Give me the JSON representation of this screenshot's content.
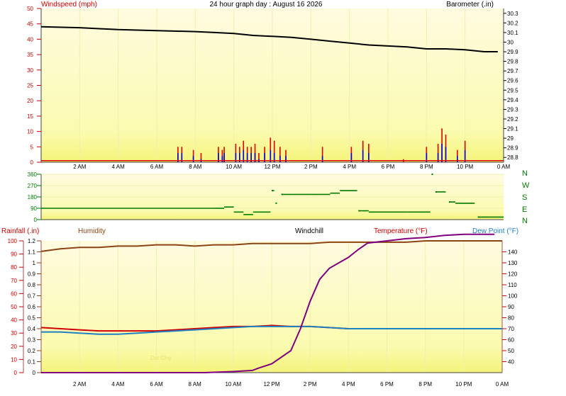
{
  "chart_data": [
    {
      "type": "line",
      "title": "24 hour graph day : August 16 2026",
      "x_ticks": [
        "2 AM",
        "4 AM",
        "6 AM",
        "8 AM",
        "10 AM",
        "12 PM",
        "2 PM",
        "4 PM",
        "6 PM",
        "8 PM",
        "10 PM",
        "0 AM"
      ],
      "x_range_hours": [
        0,
        24
      ],
      "left_axis": {
        "label": "Windspeed (mph)",
        "range": [
          0,
          50
        ],
        "ticks": [
          0,
          5,
          10,
          15,
          20,
          25,
          30,
          35,
          40,
          45,
          50
        ]
      },
      "right_axis": {
        "label": "Barometer (.in)",
        "range": [
          28.75,
          30.35
        ],
        "ticks": [
          28.8,
          28.9,
          29,
          29.1,
          29.2,
          29.3,
          29.4,
          29.5,
          29.6,
          29.7,
          29.8,
          29.9,
          30,
          30.1,
          30.2,
          30.3
        ]
      },
      "series": [
        {
          "name": "Barometer",
          "axis": "right",
          "color": "#000000",
          "x": [
            0,
            2,
            4,
            6,
            8,
            9,
            10,
            11,
            12,
            13,
            14,
            15,
            16,
            17,
            18,
            19,
            20,
            21,
            22,
            23,
            23.7
          ],
          "y": [
            30.16,
            30.15,
            30.13,
            30.12,
            30.11,
            30.1,
            30.09,
            30.07,
            30.06,
            30.05,
            30.03,
            30.01,
            29.99,
            29.97,
            29.96,
            29.95,
            29.93,
            29.93,
            29.92,
            29.9,
            29.9
          ]
        },
        {
          "name": "Wind gust",
          "axis": "left",
          "color": "#e00000",
          "style": "spikes",
          "x": [
            7.1,
            7.3,
            7.9,
            8.3,
            9.2,
            9.4,
            9.5,
            10.1,
            10.3,
            10.5,
            10.7,
            10.9,
            11.1,
            11.3,
            11.6,
            11.9,
            12.1,
            12.4,
            12.7,
            14.6,
            16.1,
            16.7,
            17.0,
            18.8,
            20.0,
            20.6,
            20.8,
            21.0,
            21.6,
            22.0
          ],
          "y": [
            5,
            5,
            4,
            3,
            5,
            4,
            5,
            6,
            5,
            7,
            5,
            5,
            6,
            3,
            5,
            8,
            7,
            5,
            4,
            5,
            5,
            7,
            6,
            1,
            5,
            6,
            11,
            9,
            4,
            7
          ]
        },
        {
          "name": "Wind speed",
          "axis": "left",
          "color": "#0000e0",
          "style": "spikes",
          "x": [
            7.1,
            7.3,
            7.9,
            8.3,
            9.2,
            9.4,
            9.5,
            10.1,
            10.3,
            10.5,
            10.7,
            10.9,
            11.1,
            11.3,
            11.6,
            11.9,
            12.1,
            12.4,
            12.7,
            14.6,
            16.1,
            16.7,
            17.0,
            18.8,
            20.0,
            20.6,
            20.8,
            21.0,
            21.6,
            22.0
          ],
          "y": [
            3,
            3,
            2,
            1,
            3,
            2,
            3,
            3,
            3,
            4,
            3,
            3,
            3,
            1,
            3,
            4,
            3,
            2,
            2,
            2,
            3,
            4,
            3,
            0,
            3,
            3,
            6,
            5,
            2,
            4
          ]
        },
        {
          "name": "Zero line",
          "axis": "left",
          "color": "#e00000",
          "x": [
            0,
            24
          ],
          "y": [
            0.5,
            0.5
          ]
        }
      ]
    },
    {
      "type": "scatter",
      "x_range_hours": [
        0,
        24
      ],
      "left_axis": {
        "range": [
          0,
          360
        ],
        "ticks": [
          0,
          90,
          180,
          270,
          360
        ]
      },
      "right_labels": [
        "N",
        "W",
        "S",
        "E",
        "N"
      ],
      "series": [
        {
          "name": "Wind direction",
          "color": "#007a00",
          "x": [
            0,
            9.0,
            9.5,
            10.0,
            10.5,
            11.0,
            11.5,
            11.9,
            12.0,
            12.1,
            12.2,
            12.5,
            13,
            14,
            15,
            15.5,
            16.4,
            16.5,
            17,
            18,
            19,
            20.2,
            20.3,
            20.5,
            21.0,
            21.2,
            21.5,
            22.5,
            22.7,
            24
          ],
          "y": [
            90,
            90,
            100,
            60,
            40,
            60,
            60,
            60,
            230,
            210,
            130,
            200,
            200,
            200,
            210,
            230,
            230,
            70,
            60,
            60,
            60,
            60,
            360,
            220,
            220,
            140,
            130,
            130,
            20,
            25
          ]
        }
      ]
    },
    {
      "type": "line",
      "x_ticks": [
        "2 AM",
        "4 AM",
        "6 AM",
        "8 AM",
        "10 AM",
        "12 PM",
        "2 PM",
        "4 PM",
        "6 PM",
        "8 PM",
        "10 PM",
        "0 AM"
      ],
      "x_range_hours": [
        0,
        24
      ],
      "headers": [
        "Rainfall (.in)",
        "Humidity",
        "Windchill",
        "Temperature (°F)",
        "Dew Point (°F)"
      ],
      "left_outer_axis": {
        "range": [
          0,
          100
        ],
        "ticks": [
          0,
          10,
          20,
          30,
          40,
          50,
          60,
          70,
          80,
          90,
          100
        ]
      },
      "left_inner_axis": {
        "range": [
          0,
          1.2
        ],
        "ticks": [
          0,
          0.1,
          0.2,
          0.3,
          0.4,
          0.5,
          0.6,
          0.7,
          0.8,
          0.9,
          1,
          1.1,
          1.2
        ]
      },
      "right_axis": {
        "range": [
          30,
          150
        ],
        "ticks": [
          40,
          50,
          60,
          70,
          80,
          90,
          100,
          110,
          120,
          130,
          140
        ]
      },
      "annotation": "Dst Chg",
      "series": [
        {
          "name": "Humidity",
          "axis": "left_outer",
          "color": "#8b4513",
          "x": [
            0,
            1,
            2,
            3,
            4,
            5,
            6,
            7,
            8,
            9,
            10,
            11,
            12,
            13,
            14,
            15,
            16,
            17,
            18,
            19,
            20,
            21,
            22,
            23,
            24
          ],
          "y": [
            92,
            94,
            95,
            95,
            96,
            96,
            97,
            97,
            96,
            97,
            97,
            98,
            98,
            98,
            98,
            99,
            99,
            99,
            99,
            99,
            100,
            100,
            100,
            100,
            100
          ]
        },
        {
          "name": "Temperature",
          "axis": "right",
          "color": "#d00000",
          "x": [
            0,
            1,
            2,
            3,
            4,
            5,
            6,
            7,
            8,
            9,
            10,
            11,
            12,
            13,
            14,
            15,
            16,
            17,
            18,
            19,
            20,
            21,
            22,
            23,
            24
          ],
          "y": [
            71,
            70,
            69,
            68,
            68,
            68,
            68,
            69,
            70,
            71,
            72,
            72,
            73,
            72,
            72,
            71,
            70,
            70,
            70,
            70,
            70,
            70,
            70,
            70,
            70
          ]
        },
        {
          "name": "Dew Point",
          "axis": "right",
          "color": "#2080c0",
          "x": [
            0,
            1,
            2,
            3,
            4,
            5,
            6,
            7,
            8,
            9,
            10,
            11,
            12,
            13,
            14,
            15,
            16,
            17,
            18,
            19,
            20,
            21,
            22,
            23,
            24
          ],
          "y": [
            67,
            67,
            66,
            65,
            65,
            66,
            67,
            68,
            69,
            70,
            71,
            72,
            72,
            72,
            72,
            71,
            70,
            70,
            70,
            70,
            70,
            70,
            70,
            70,
            70
          ]
        },
        {
          "name": "Rainfall",
          "axis": "left_inner",
          "color": "#800080",
          "x": [
            0,
            8.5,
            10,
            11,
            11.3,
            12,
            13,
            13.5,
            14,
            14.5,
            15,
            15.5,
            16,
            16.5,
            17,
            18,
            19,
            20,
            21,
            22,
            23.6
          ],
          "y": [
            0,
            0,
            0.01,
            0.02,
            0.04,
            0.08,
            0.2,
            0.4,
            0.65,
            0.85,
            0.95,
            1.0,
            1.05,
            1.12,
            1.18,
            1.2,
            1.22,
            1.23,
            1.25,
            1.26,
            1.26
          ]
        }
      ]
    }
  ]
}
